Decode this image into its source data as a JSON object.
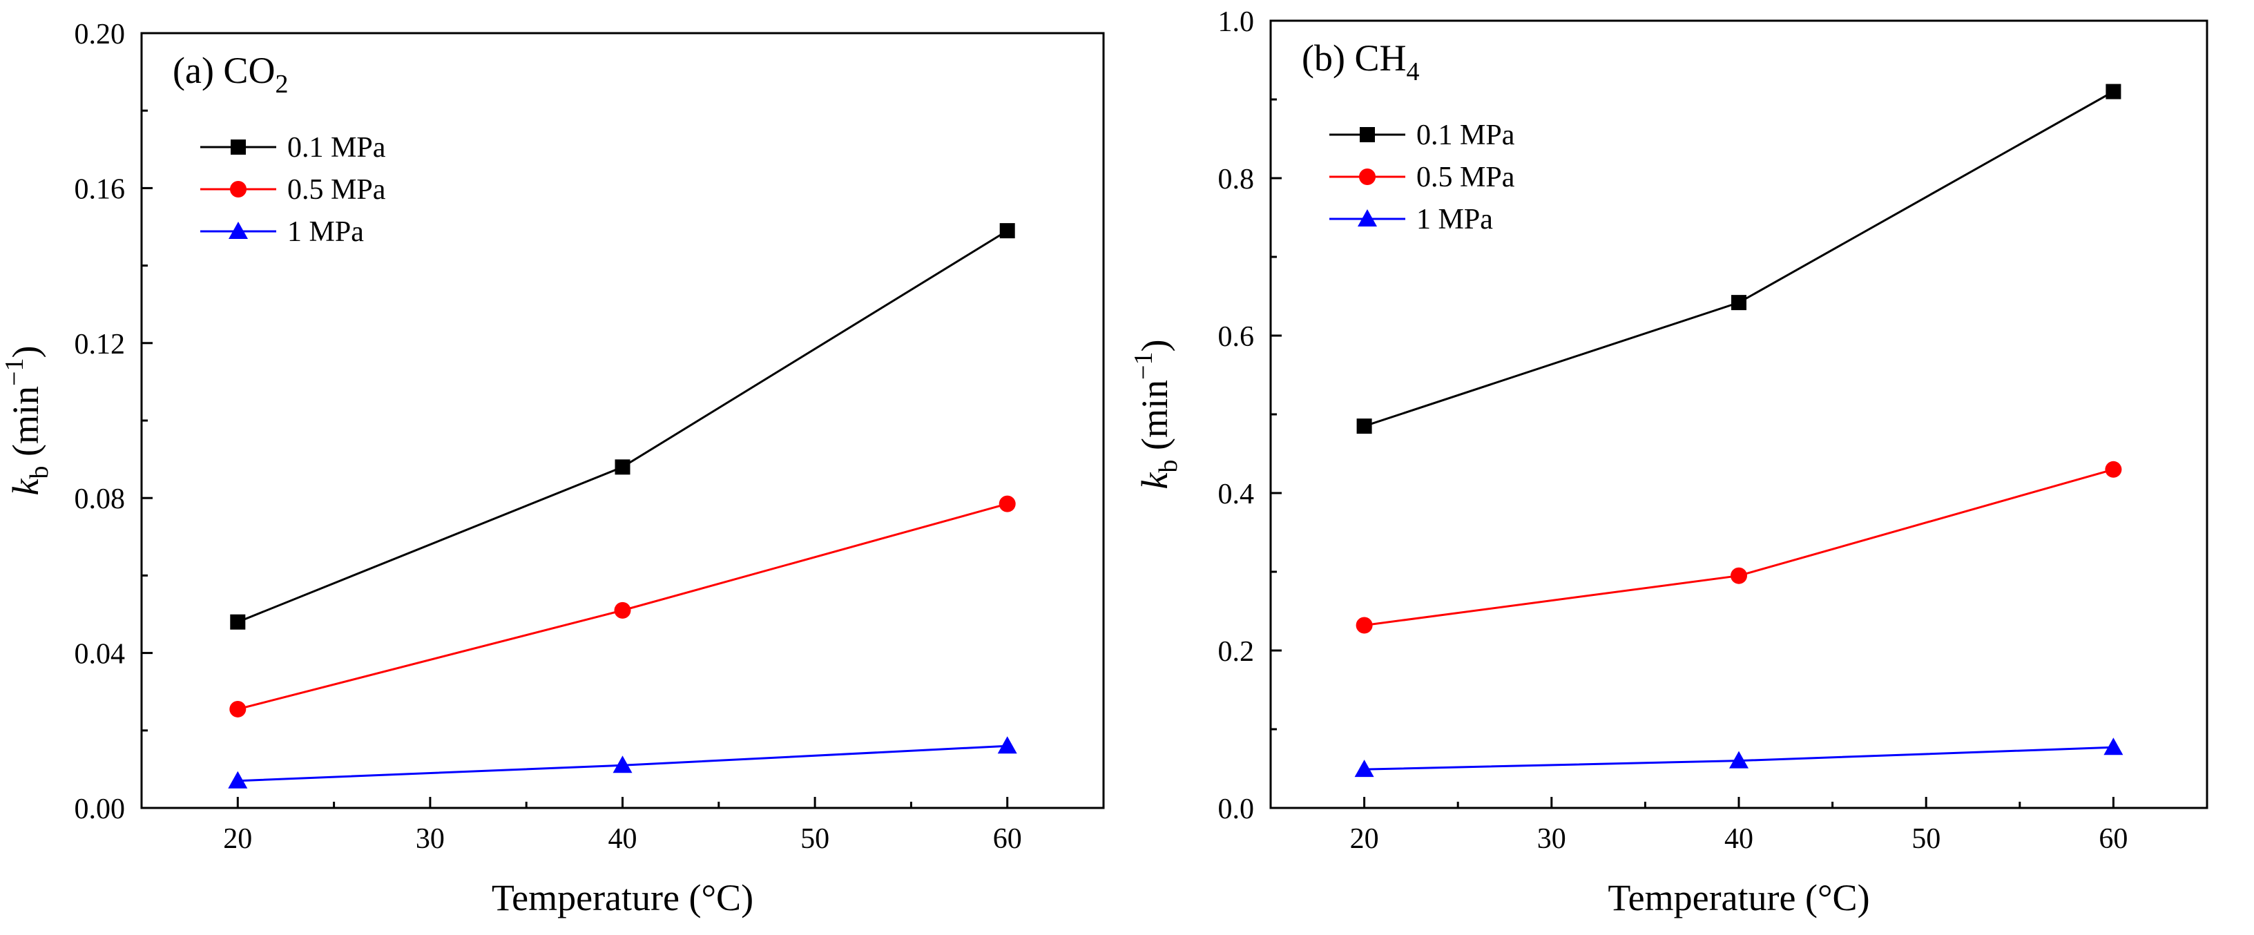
{
  "chart_data": [
    {
      "type": "line",
      "panel_label": "(a) CO",
      "panel_label_sub": "2",
      "xlabel": "Temperature (°C)",
      "ylabel_main": "k",
      "ylabel_sub": "b",
      "ylabel_unit": " (min",
      "ylabel_sup": "−1",
      "ylabel_close": ")",
      "xlim": [
        15,
        65
      ],
      "ylim": [
        0,
        0.2
      ],
      "xticks": [
        20,
        30,
        40,
        50,
        60
      ],
      "xtick_labels": [
        "20",
        "30",
        "40",
        "50",
        "60"
      ],
      "yticks": [
        0,
        0.04,
        0.08,
        0.12,
        0.16,
        0.2
      ],
      "ytick_labels": [
        "0.00",
        "0.04",
        "0.08",
        "0.12",
        "0.16",
        "0.20"
      ],
      "x": [
        20,
        40,
        60
      ],
      "legend_placement": "top-left",
      "grid": false,
      "series": [
        {
          "name": "0.1 MPa",
          "values": [
            0.048,
            0.088,
            0.149
          ],
          "color": "#000000",
          "marker": "square"
        },
        {
          "name": "0.5 MPa",
          "values": [
            0.0255,
            0.051,
            0.0785
          ],
          "color": "#ff0000",
          "marker": "circle"
        },
        {
          "name": "1 MPa",
          "values": [
            0.007,
            0.011,
            0.016
          ],
          "color": "#0000ff",
          "marker": "triangle"
        }
      ]
    },
    {
      "type": "line",
      "panel_label": "(b) CH",
      "panel_label_sub": "4",
      "xlabel": "Temperature (°C)",
      "ylabel_main": "k",
      "ylabel_sub": "b",
      "ylabel_unit": " (min",
      "ylabel_sup": "−1",
      "ylabel_close": ")",
      "xlim": [
        15,
        65
      ],
      "ylim": [
        0,
        1.0
      ],
      "xticks": [
        20,
        30,
        40,
        50,
        60
      ],
      "xtick_labels": [
        "20",
        "30",
        "40",
        "50",
        "60"
      ],
      "yticks": [
        0,
        0.2,
        0.4,
        0.6,
        0.8,
        1.0
      ],
      "ytick_labels": [
        "0.0",
        "0.2",
        "0.4",
        "0.6",
        "0.8",
        "1.0"
      ],
      "x": [
        20,
        40,
        60
      ],
      "legend_placement": "top-left",
      "grid": false,
      "series": [
        {
          "name": "0.1 MPa",
          "values": [
            0.485,
            0.642,
            0.91
          ],
          "color": "#000000",
          "marker": "square"
        },
        {
          "name": "0.5 MPa",
          "values": [
            0.232,
            0.295,
            0.43
          ],
          "color": "#ff0000",
          "marker": "circle"
        },
        {
          "name": "1 MPa",
          "values": [
            0.049,
            0.06,
            0.077
          ],
          "color": "#0000ff",
          "marker": "triangle"
        }
      ]
    }
  ]
}
